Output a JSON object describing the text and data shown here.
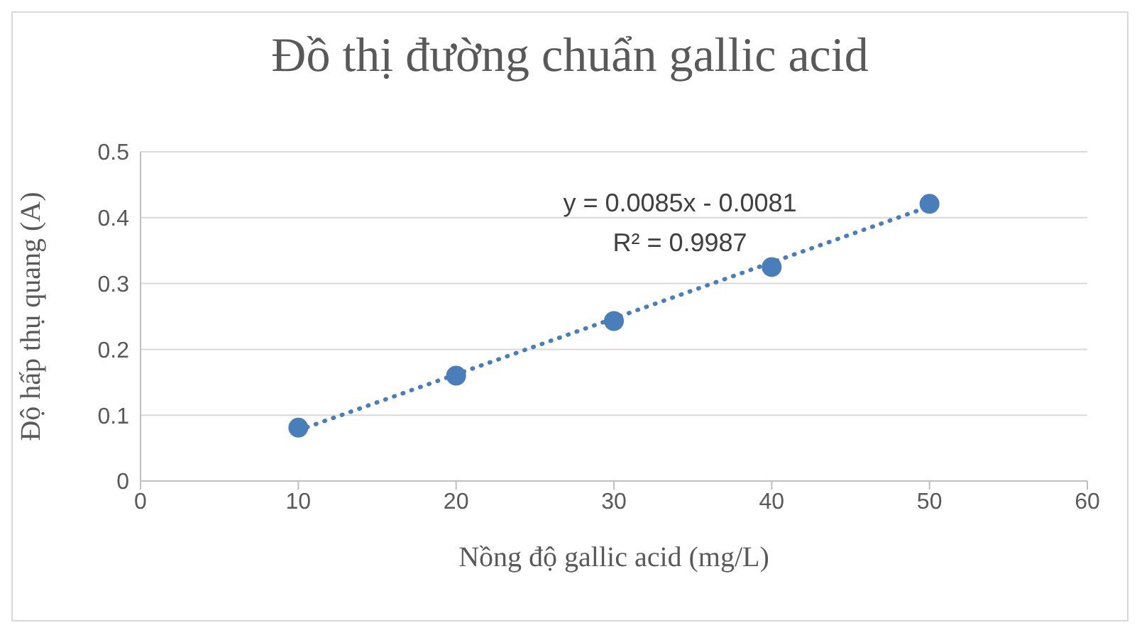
{
  "chart_data": {
    "type": "scatter",
    "title": "Đồ thị đường chuẩn gallic acid",
    "xlabel": "Nồng độ gallic acid (mg/L)",
    "ylabel": "Độ hấp thụ quang (A)",
    "x": [
      10,
      20,
      30,
      40,
      50
    ],
    "series": [
      {
        "color": "#4a7ebb",
        "values": [
          0.081,
          0.16,
          0.243,
          0.325,
          0.421
        ],
        "marker": "circle"
      },
      {
        "type": "line",
        "color": "#4a7ebb",
        "x": [
          10,
          50
        ],
        "values": [
          0.077,
          0.417
        ],
        "line_style": "dotted",
        "marker": "none"
      }
    ],
    "annotations": [
      "y = 0.0085x - 0.0081",
      "R² = 0.9987"
    ],
    "xlim": [
      0,
      60
    ],
    "xticks": [
      0,
      10,
      20,
      30,
      40,
      50,
      60
    ],
    "ylim": [
      0,
      0.5
    ],
    "yticks": [
      0,
      0.1,
      0.2,
      0.3,
      0.4,
      0.5
    ],
    "grid": "y",
    "legend": false
  }
}
